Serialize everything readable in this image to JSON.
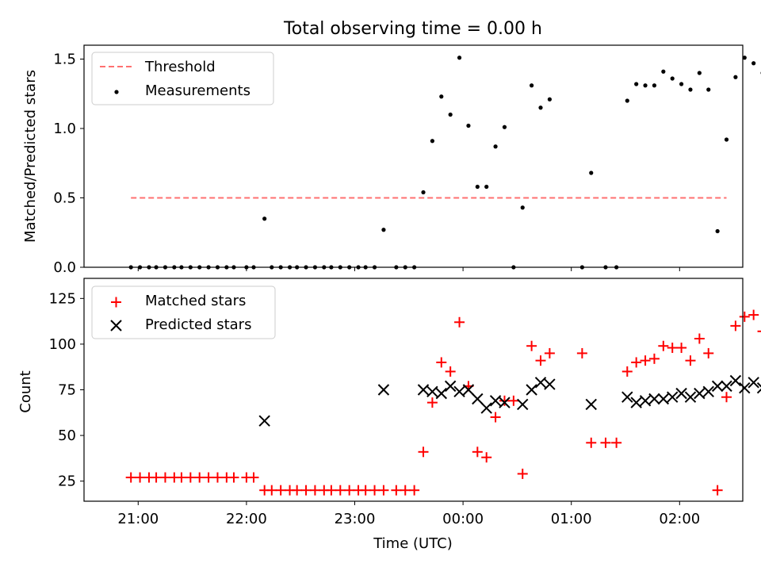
{
  "chart_data": [
    {
      "type": "scatter",
      "title": "Total observing time = 0.00 h",
      "xlabel": "",
      "ylabel": "Matched/Predicted stars",
      "xlim_minutes_from_2100": [
        -30,
        335
      ],
      "ylim": [
        0,
        1.6
      ],
      "yticks": [
        0.0,
        0.5,
        1.0,
        1.5
      ],
      "yticklabels": [
        "0.0",
        "0.5",
        "1.0",
        "1.5"
      ],
      "grid": false,
      "legend": "top-left",
      "threshold": {
        "name": "Threshold",
        "value": 0.5,
        "x_range_minutes": [
          -4,
          326
        ],
        "color": "#ff7070",
        "style": "dashed"
      },
      "series": [
        {
          "name": "Measurements",
          "marker": "dot",
          "color": "#000000",
          "points": [
            [
              -4,
              0
            ],
            [
              1,
              0
            ],
            [
              6,
              0
            ],
            [
              10,
              0
            ],
            [
              15,
              0
            ],
            [
              20,
              0
            ],
            [
              24,
              0
            ],
            [
              29,
              0
            ],
            [
              34,
              0
            ],
            [
              39,
              0
            ],
            [
              44,
              0
            ],
            [
              49,
              0
            ],
            [
              53,
              0
            ],
            [
              60,
              0
            ],
            [
              64,
              0
            ],
            [
              70,
              0.35
            ],
            [
              74,
              0
            ],
            [
              79,
              0
            ],
            [
              84,
              0
            ],
            [
              88,
              0
            ],
            [
              93,
              0
            ],
            [
              98,
              0
            ],
            [
              103,
              0
            ],
            [
              107,
              0
            ],
            [
              112,
              0
            ],
            [
              117,
              0
            ],
            [
              122,
              0
            ],
            [
              126,
              0
            ],
            [
              131,
              0
            ],
            [
              136,
              0.27
            ],
            [
              143,
              0
            ],
            [
              148,
              0
            ],
            [
              153,
              0
            ],
            [
              158,
              0.54
            ],
            [
              163,
              0.91
            ],
            [
              168,
              1.23
            ],
            [
              173,
              1.1
            ],
            [
              178,
              1.51
            ],
            [
              183,
              1.02
            ],
            [
              188,
              0.58
            ],
            [
              193,
              0.58
            ],
            [
              198,
              0.87
            ],
            [
              203,
              1.01
            ],
            [
              208,
              0
            ],
            [
              213,
              0.43
            ],
            [
              218,
              1.31
            ],
            [
              223,
              1.15
            ],
            [
              228,
              1.21
            ],
            [
              246,
              0
            ],
            [
              251,
              0.68
            ],
            [
              259,
              0
            ],
            [
              265,
              0
            ],
            [
              271,
              1.2
            ],
            [
              276,
              1.32
            ],
            [
              281,
              1.31
            ],
            [
              286,
              1.31
            ],
            [
              291,
              1.41
            ],
            [
              296,
              1.36
            ],
            [
              301,
              1.32
            ],
            [
              306,
              1.28
            ],
            [
              311,
              1.4
            ],
            [
              316,
              1.28
            ],
            [
              321,
              0.26
            ],
            [
              326,
              0.92
            ],
            [
              331,
              1.37
            ],
            [
              336,
              1.51
            ],
            [
              341,
              1.47
            ],
            [
              346,
              1.4
            ],
            [
              351,
              1.4
            ],
            [
              356,
              1.46
            ],
            [
              361,
              1.31
            ],
            [
              366,
              0.47
            ],
            [
              371,
              1.2
            ],
            [
              376,
              1.16
            ],
            [
              381,
              0.35
            ],
            [
              386,
              0.43
            ],
            [
              391,
              0.92
            ],
            [
              396,
              1.35
            ],
            [
              401,
              1.44
            ],
            [
              406,
              0.6
            ],
            [
              411,
              0.46
            ],
            [
              416,
              1.18
            ],
            [
              421,
              1.1
            ],
            [
              426,
              1.0
            ],
            [
              431,
              0
            ],
            [
              436,
              0.87
            ]
          ]
        }
      ]
    },
    {
      "type": "scatter",
      "title": "",
      "xlabel": "Time (UTC)",
      "ylabel": "Count",
      "xlim_minutes_from_2100": [
        -30,
        335
      ],
      "ylim": [
        14,
        136
      ],
      "yticks": [
        25,
        50,
        75,
        100,
        125
      ],
      "yticklabels": [
        "25",
        "50",
        "75",
        "100",
        "125"
      ],
      "xticks_minutes": [
        0,
        60,
        120,
        180,
        240,
        300,
        360
      ],
      "xticklabels": [
        "21:00",
        "22:00",
        "23:00",
        "00:00",
        "01:00",
        "02:00",
        "03:00"
      ],
      "grid": false,
      "legend": "top-left",
      "series": [
        {
          "name": "Matched stars",
          "marker": "plus",
          "color": "#ff0000",
          "points": [
            [
              -4,
              27
            ],
            [
              1,
              27
            ],
            [
              6,
              27
            ],
            [
              10,
              27
            ],
            [
              15,
              27
            ],
            [
              20,
              27
            ],
            [
              24,
              27
            ],
            [
              29,
              27
            ],
            [
              34,
              27
            ],
            [
              39,
              27
            ],
            [
              44,
              27
            ],
            [
              49,
              27
            ],
            [
              53,
              27
            ],
            [
              60,
              27
            ],
            [
              64,
              27
            ],
            [
              70,
              20
            ],
            [
              74,
              20
            ],
            [
              79,
              20
            ],
            [
              84,
              20
            ],
            [
              88,
              20
            ],
            [
              93,
              20
            ],
            [
              98,
              20
            ],
            [
              103,
              20
            ],
            [
              107,
              20
            ],
            [
              112,
              20
            ],
            [
              117,
              20
            ],
            [
              122,
              20
            ],
            [
              126,
              20
            ],
            [
              131,
              20
            ],
            [
              136,
              20
            ],
            [
              143,
              20
            ],
            [
              148,
              20
            ],
            [
              153,
              20
            ],
            [
              158,
              41
            ],
            [
              163,
              68
            ],
            [
              168,
              90
            ],
            [
              173,
              85
            ],
            [
              178,
              112
            ],
            [
              183,
              77
            ],
            [
              188,
              41
            ],
            [
              193,
              38
            ],
            [
              198,
              60
            ],
            [
              203,
              69
            ],
            [
              208,
              69
            ],
            [
              213,
              29
            ],
            [
              218,
              99
            ],
            [
              223,
              91
            ],
            [
              228,
              95
            ],
            [
              246,
              95
            ],
            [
              251,
              46
            ],
            [
              259,
              46
            ],
            [
              265,
              46
            ],
            [
              271,
              85
            ],
            [
              276,
              90
            ],
            [
              281,
              91
            ],
            [
              286,
              92
            ],
            [
              291,
              99
            ],
            [
              296,
              98
            ],
            [
              301,
              98
            ],
            [
              306,
              91
            ],
            [
              311,
              103
            ],
            [
              316,
              95
            ],
            [
              321,
              20
            ],
            [
              326,
              71
            ],
            [
              331,
              110
            ],
            [
              336,
              115
            ],
            [
              341,
              116
            ],
            [
              346,
              107
            ],
            [
              351,
              107
            ],
            [
              356,
              111
            ],
            [
              361,
              96
            ],
            [
              366,
              43
            ],
            [
              371,
              91
            ],
            [
              376,
              94
            ],
            [
              381,
              21
            ],
            [
              386,
              28
            ],
            [
              391,
              80
            ],
            [
              396,
              119
            ],
            [
              401,
              131
            ],
            [
              406,
              55
            ],
            [
              411,
              37
            ],
            [
              416,
              91
            ],
            [
              421,
              68
            ],
            [
              426,
              57
            ],
            [
              431,
              57
            ],
            [
              436,
              20
            ]
          ]
        },
        {
          "name": "Predicted stars",
          "marker": "x",
          "color": "#000000",
          "points": [
            [
              70,
              58
            ],
            [
              136,
              75
            ],
            [
              158,
              75
            ],
            [
              163,
              74
            ],
            [
              168,
              73
            ],
            [
              173,
              77
            ],
            [
              178,
              74
            ],
            [
              183,
              75
            ],
            [
              188,
              70
            ],
            [
              193,
              65
            ],
            [
              198,
              69
            ],
            [
              203,
              68
            ],
            [
              213,
              67
            ],
            [
              218,
              75
            ],
            [
              223,
              79
            ],
            [
              228,
              78
            ],
            [
              251,
              67
            ],
            [
              271,
              71
            ],
            [
              276,
              68
            ],
            [
              281,
              69
            ],
            [
              286,
              70
            ],
            [
              291,
              70
            ],
            [
              296,
              71
            ],
            [
              301,
              73
            ],
            [
              306,
              71
            ],
            [
              311,
              73
            ],
            [
              316,
              74
            ],
            [
              321,
              77
            ],
            [
              326,
              77
            ],
            [
              331,
              80
            ],
            [
              336,
              76
            ],
            [
              341,
              79
            ],
            [
              346,
              76
            ],
            [
              351,
              76
            ],
            [
              356,
              76
            ],
            [
              361,
              73
            ],
            [
              366,
              91
            ],
            [
              371,
              75
            ],
            [
              376,
              81
            ],
            [
              381,
              61
            ],
            [
              386,
              66
            ],
            [
              391,
              86
            ],
            [
              396,
              88
            ],
            [
              401,
              91
            ],
            [
              406,
              92
            ],
            [
              411,
              81
            ],
            [
              416,
              77
            ],
            [
              421,
              62
            ],
            [
              426,
              57
            ],
            [
              436,
              23
            ]
          ]
        }
      ]
    }
  ]
}
